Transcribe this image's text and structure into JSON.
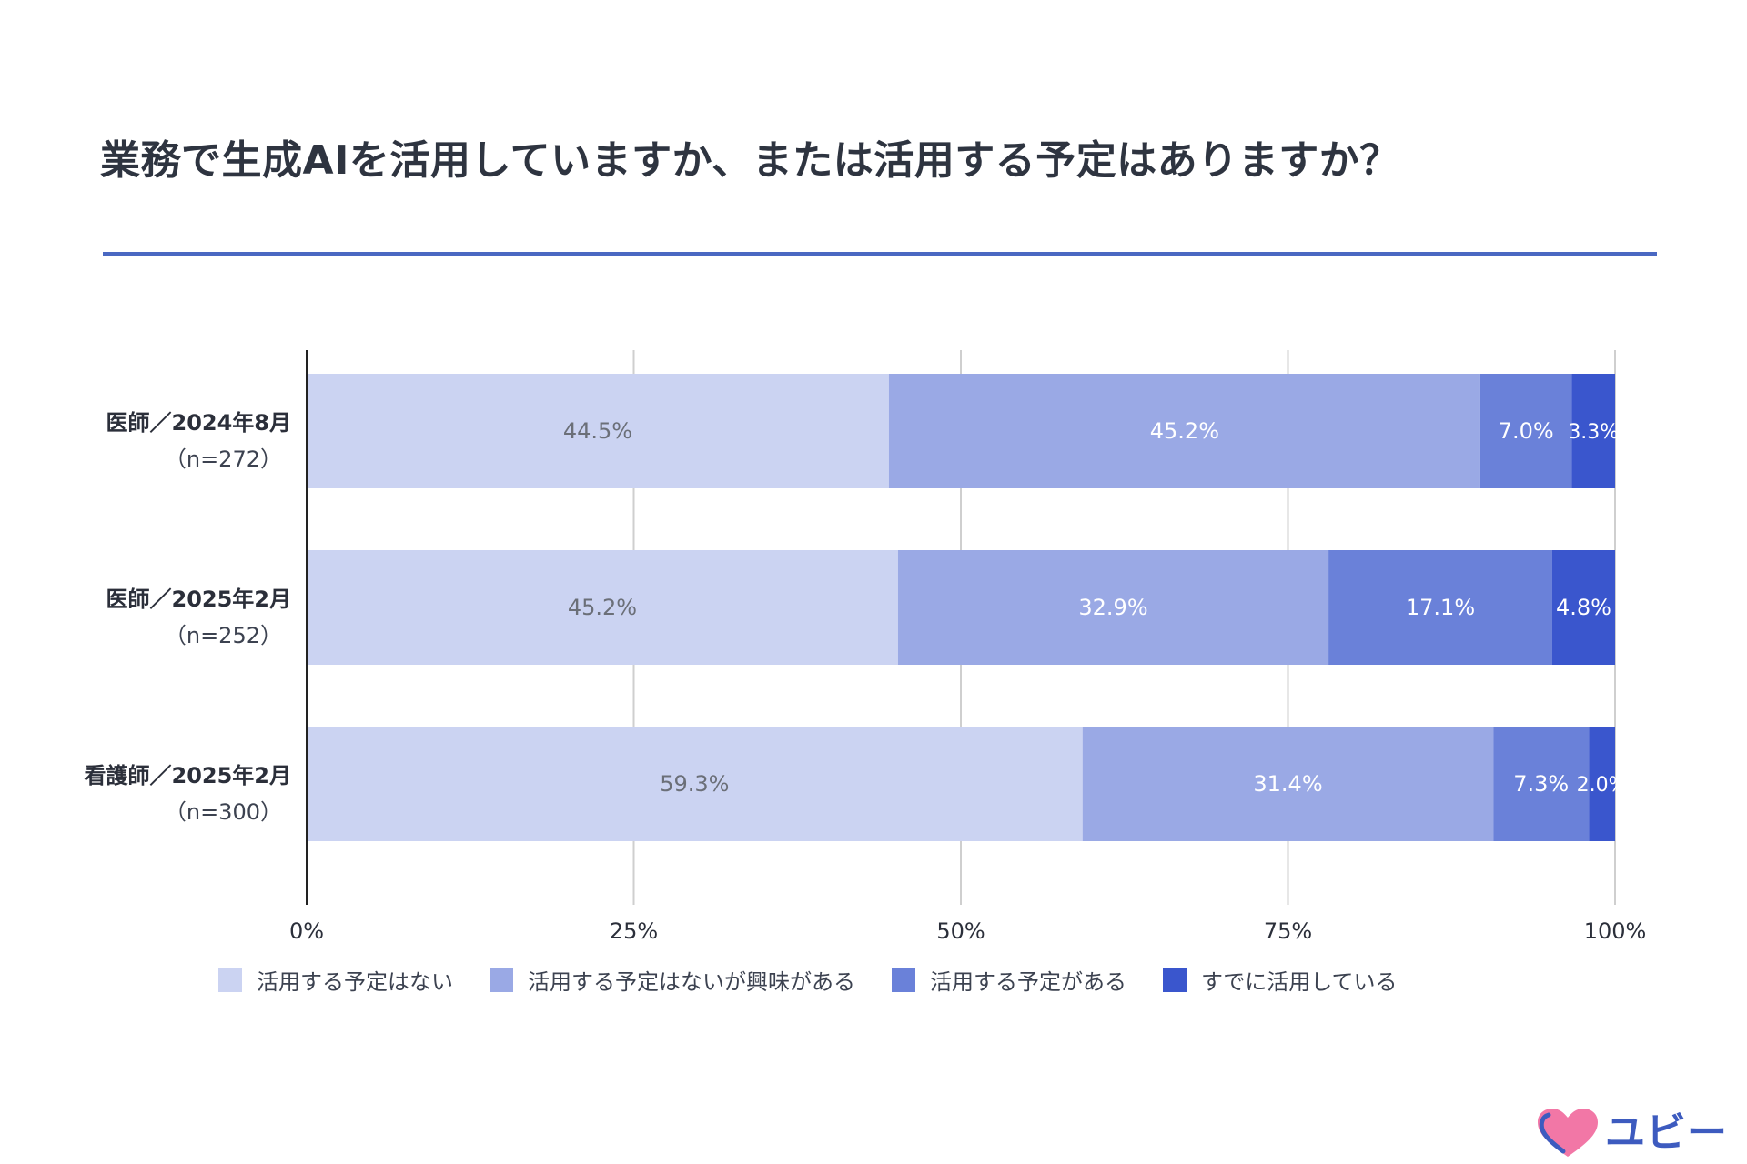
{
  "title": "業務で生成AIを活用していますか、または活用する予定はありますか？",
  "brand": {
    "name": "ユビー",
    "heart_color": "#f277a6",
    "accent_color": "#3d5bbf",
    "icon": "heart-logo-icon"
  },
  "chart_data": {
    "type": "bar",
    "orientation": "horizontal",
    "stacked": true,
    "title": "業務で生成AIを活用していますか、または活用する予定はありますか？",
    "categories": [
      {
        "label": "医師／2024年8月",
        "sublabel": "（n=272）"
      },
      {
        "label": "医師／2025年2月",
        "sublabel": "（n=252）"
      },
      {
        "label": "看護師／2025年2月",
        "sublabel": "（n=300）"
      }
    ],
    "series": [
      {
        "name": "活用する予定はない",
        "color": "#cbd3f2",
        "label_color": "#6b6f78",
        "values": [
          44.5,
          45.2,
          59.3
        ],
        "labels": [
          "44.5%",
          "45.2%",
          "59.3%"
        ]
      },
      {
        "name": "活用する予定はないが興味がある",
        "color": "#9aa9e5",
        "label_color": "#ffffff",
        "values": [
          45.2,
          32.9,
          31.4
        ],
        "labels": [
          "45.2%",
          "32.9%",
          "31.4%"
        ]
      },
      {
        "name": "活用する予定がある",
        "color": "#6a81d9",
        "label_color": "#ffffff",
        "values": [
          7.0,
          17.1,
          7.3
        ],
        "labels": [
          "7.0%",
          "17.1%",
          "7.3%"
        ]
      },
      {
        "name": "すでに活用している",
        "color": "#3a56cd",
        "label_color": "#ffffff",
        "values": [
          3.3,
          4.8,
          2.0
        ],
        "labels": [
          "3.3%",
          "4.8%",
          "2.0%"
        ]
      }
    ],
    "xlim": [
      0,
      100
    ],
    "xticks": [
      0,
      25,
      50,
      75,
      100
    ],
    "xtick_labels": [
      "0%",
      "25%",
      "50%",
      "75%",
      "100%"
    ],
    "grid": true,
    "legend_position": "bottom"
  }
}
